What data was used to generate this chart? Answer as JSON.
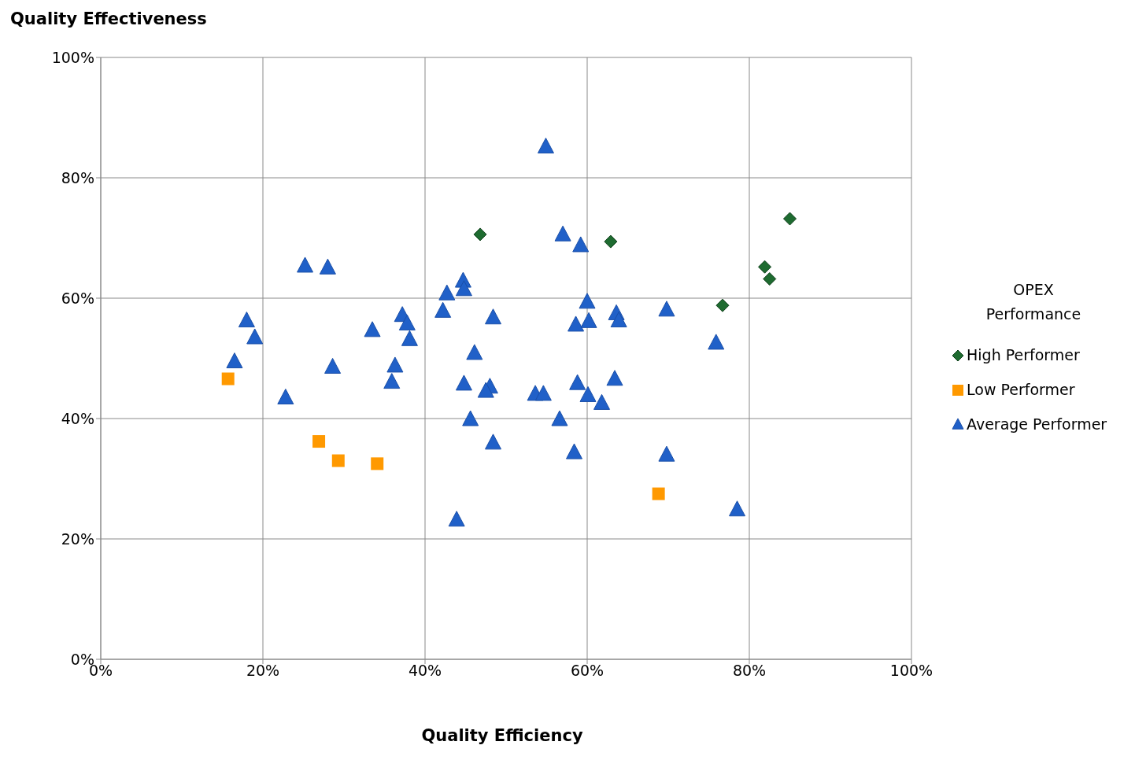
{
  "chart_data": {
    "type": "scatter",
    "ylabel": "Quality Effectiveness",
    "xlabel": "Quality Efficiency",
    "legend_title": "OPEX Performance",
    "legend": "right",
    "grid": true,
    "xlim": [
      0,
      100
    ],
    "ylim": [
      0,
      100
    ],
    "xticks": [
      {
        "value": 0,
        "label": "0%"
      },
      {
        "value": 20,
        "label": "20%"
      },
      {
        "value": 40,
        "label": "40%"
      },
      {
        "value": 60,
        "label": "60%"
      },
      {
        "value": 80,
        "label": "80%"
      },
      {
        "value": 100,
        "label": "100%"
      }
    ],
    "yticks": [
      {
        "value": 0,
        "label": "0%"
      },
      {
        "value": 20,
        "label": "20%"
      },
      {
        "value": 40,
        "label": "40%"
      },
      {
        "value": 60,
        "label": "60%"
      },
      {
        "value": 80,
        "label": "80%"
      },
      {
        "value": 100,
        "label": "100%"
      }
    ],
    "series": [
      {
        "name": "High Performer",
        "color": "#1e6b30",
        "marker": "diamond",
        "x": [
          46.8,
          62.9,
          85.0,
          81.9,
          82.5,
          76.7
        ],
        "values": [
          70.6,
          69.4,
          73.2,
          65.2,
          63.2,
          58.8
        ]
      },
      {
        "name": "Low Performer",
        "color": "#ff9900",
        "marker": "square",
        "x": [
          15.7,
          26.9,
          29.3,
          34.1,
          68.8
        ],
        "values": [
          46.6,
          36.2,
          33.0,
          32.5,
          27.5
        ]
      },
      {
        "name": "Average Performer",
        "color": "#2060c8",
        "marker": "triangle",
        "x": [
          54.9,
          57.0,
          59.2,
          25.2,
          28.0,
          44.7,
          44.8,
          42.7,
          60.0,
          42.2,
          69.8,
          18.0,
          37.2,
          37.8,
          48.4,
          63.6,
          63.9,
          58.6,
          60.2,
          33.5,
          19.0,
          38.1,
          75.9,
          46.1,
          16.5,
          36.3,
          28.6,
          63.4,
          35.9,
          44.8,
          58.8,
          48.0,
          47.5,
          53.6,
          54.6,
          60.1,
          22.8,
          61.8,
          45.6,
          56.6,
          48.4,
          58.4,
          69.8,
          78.5,
          43.9
        ],
        "values": [
          85.1,
          70.5,
          68.7,
          65.3,
          65.0,
          62.8,
          61.4,
          60.7,
          59.3,
          57.8,
          58.0,
          56.2,
          57.1,
          55.7,
          56.7,
          57.4,
          56.2,
          55.5,
          56.1,
          54.6,
          53.4,
          53.1,
          52.5,
          50.8,
          49.4,
          48.7,
          48.5,
          46.5,
          46.0,
          45.7,
          45.8,
          45.2,
          44.5,
          44.0,
          44.0,
          43.8,
          43.4,
          42.5,
          39.8,
          39.8,
          35.9,
          34.3,
          33.9,
          24.8,
          23.1
        ]
      }
    ]
  }
}
